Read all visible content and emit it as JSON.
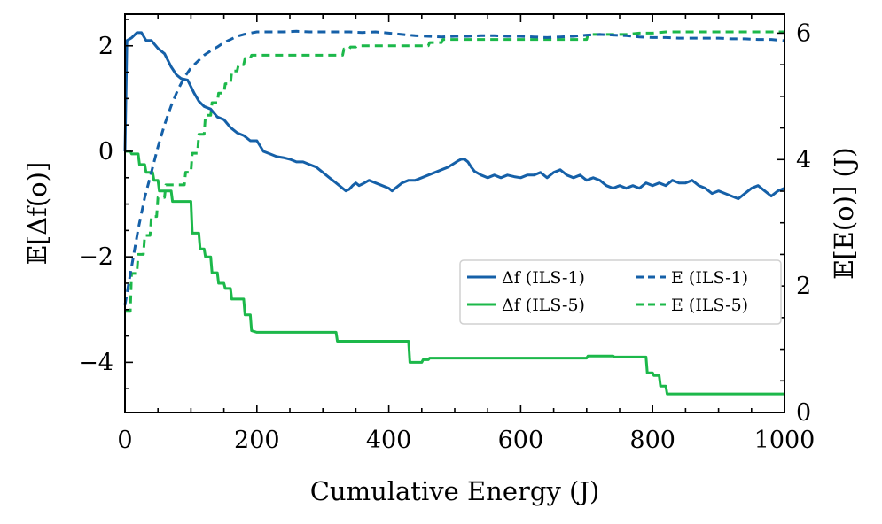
{
  "chart_data": {
    "type": "line",
    "xlabel": "Cumulative Energy (J)",
    "ylabel_left": "𝔼[Δf(o)]",
    "ylabel_right": "𝔼[E(o)] (J)",
    "xlim": [
      0,
      1000
    ],
    "ylim_left": [
      -4.95,
      2.6
    ],
    "ylim_right": [
      0,
      6.3
    ],
    "xticks": [
      0,
      200,
      400,
      600,
      800,
      1000
    ],
    "xtick_labels": [
      "0",
      "200",
      "400",
      "600",
      "800",
      "1000"
    ],
    "yticks_left": [
      2,
      0,
      -2,
      -4
    ],
    "ytick_labels_left": [
      "2",
      "0",
      "−2",
      "−4"
    ],
    "yticks_right": [
      0,
      2,
      4,
      6
    ],
    "ytick_labels_right": [
      "0",
      "2",
      "4",
      "6"
    ],
    "grid": false,
    "legend_position": "center-right",
    "colors": {
      "ils1": "#1560a8",
      "ils5": "#1cb84a"
    },
    "series": [
      {
        "name": "Δf(ILS-1)",
        "legend_label": "Δf (ILS-1)",
        "axis": "left",
        "style": "solid",
        "color": "#1560a8",
        "x": [
          0,
          3,
          10,
          18,
          25,
          32,
          40,
          50,
          60,
          70,
          78,
          85,
          95,
          105,
          112,
          120,
          130,
          140,
          150,
          160,
          170,
          180,
          190,
          200,
          210,
          220,
          230,
          240,
          250,
          260,
          270,
          280,
          290,
          300,
          310,
          320,
          330,
          335,
          340,
          345,
          350,
          355,
          360,
          370,
          380,
          390,
          400,
          405,
          410,
          420,
          430,
          440,
          450,
          460,
          470,
          480,
          490,
          500,
          505,
          510,
          515,
          520,
          525,
          530,
          540,
          550,
          560,
          570,
          580,
          590,
          600,
          610,
          620,
          630,
          640,
          650,
          660,
          670,
          680,
          690,
          700,
          710,
          720,
          730,
          740,
          750,
          760,
          770,
          780,
          790,
          800,
          810,
          820,
          830,
          840,
          850,
          860,
          870,
          880,
          890,
          900,
          910,
          920,
          930,
          940,
          950,
          960,
          970,
          980,
          990,
          1000
        ],
        "values": [
          0.0,
          2.1,
          2.15,
          2.25,
          2.25,
          2.1,
          2.1,
          1.95,
          1.85,
          1.6,
          1.45,
          1.38,
          1.35,
          1.1,
          0.95,
          0.85,
          0.8,
          0.65,
          0.6,
          0.45,
          0.35,
          0.3,
          0.2,
          0.2,
          0.0,
          -0.05,
          -0.1,
          -0.12,
          -0.15,
          -0.2,
          -0.2,
          -0.25,
          -0.3,
          -0.4,
          -0.5,
          -0.6,
          -0.7,
          -0.75,
          -0.72,
          -0.65,
          -0.6,
          -0.65,
          -0.62,
          -0.55,
          -0.6,
          -0.65,
          -0.7,
          -0.75,
          -0.7,
          -0.6,
          -0.55,
          -0.55,
          -0.5,
          -0.45,
          -0.4,
          -0.35,
          -0.3,
          -0.22,
          -0.18,
          -0.15,
          -0.15,
          -0.2,
          -0.3,
          -0.38,
          -0.45,
          -0.5,
          -0.45,
          -0.5,
          -0.45,
          -0.48,
          -0.5,
          -0.45,
          -0.45,
          -0.4,
          -0.5,
          -0.4,
          -0.35,
          -0.45,
          -0.5,
          -0.45,
          -0.55,
          -0.5,
          -0.55,
          -0.65,
          -0.7,
          -0.65,
          -0.7,
          -0.65,
          -0.7,
          -0.6,
          -0.65,
          -0.6,
          -0.65,
          -0.55,
          -0.6,
          -0.6,
          -0.55,
          -0.65,
          -0.7,
          -0.8,
          -0.75,
          -0.8,
          -0.85,
          -0.9,
          -0.8,
          -0.7,
          -0.65,
          -0.75,
          -0.85,
          -0.75,
          -0.7
        ]
      },
      {
        "name": "E(ILS-1)",
        "legend_label": "E (ILS-1)",
        "axis": "right",
        "style": "dashed",
        "color": "#1560a8",
        "x": [
          0,
          10,
          20,
          30,
          40,
          50,
          60,
          70,
          80,
          90,
          100,
          110,
          120,
          130,
          140,
          150,
          160,
          170,
          180,
          190,
          200,
          220,
          240,
          260,
          280,
          300,
          320,
          340,
          360,
          380,
          400,
          420,
          440,
          460,
          480,
          500,
          520,
          540,
          560,
          580,
          600,
          620,
          640,
          660,
          680,
          700,
          720,
          740,
          760,
          780,
          800,
          820,
          840,
          860,
          880,
          900,
          920,
          940,
          960,
          980,
          1000
        ],
        "values": [
          1.7,
          2.3,
          2.9,
          3.4,
          3.8,
          4.2,
          4.55,
          4.85,
          5.1,
          5.3,
          5.45,
          5.55,
          5.65,
          5.72,
          5.78,
          5.85,
          5.9,
          5.95,
          5.98,
          6.0,
          6.02,
          6.02,
          6.02,
          6.03,
          6.02,
          6.02,
          6.02,
          6.02,
          6.01,
          6.02,
          6.0,
          5.98,
          5.96,
          5.95,
          5.94,
          5.95,
          5.95,
          5.96,
          5.96,
          5.95,
          5.95,
          5.94,
          5.93,
          5.94,
          5.95,
          5.97,
          5.98,
          5.97,
          5.96,
          5.94,
          5.93,
          5.93,
          5.92,
          5.92,
          5.92,
          5.92,
          5.91,
          5.91,
          5.9,
          5.9,
          5.88
        ]
      },
      {
        "name": "Δf(ILS-5)",
        "legend_label": "Δf (ILS-5)",
        "axis": "left",
        "style": "solid",
        "color": "#1cb84a",
        "x": [
          0,
          8,
          10,
          20,
          22,
          30,
          32,
          42,
          44,
          50,
          52,
          70,
          72,
          82,
          84,
          92,
          94,
          100,
          102,
          112,
          114,
          120,
          122,
          130,
          132,
          140,
          142,
          150,
          152,
          160,
          162,
          170,
          172,
          180,
          182,
          190,
          192,
          200,
          250,
          300,
          320,
          322,
          330,
          332,
          380,
          425,
          427,
          430,
          432,
          450,
          452,
          460,
          462,
          500,
          550,
          600,
          650,
          700,
          702,
          710,
          712,
          740,
          742,
          760,
          762,
          790,
          792,
          800,
          802,
          810,
          812,
          820,
          822,
          1000
        ],
        "values": [
          0.0,
          0.0,
          -0.05,
          -0.05,
          -0.25,
          -0.25,
          -0.4,
          -0.4,
          -0.55,
          -0.55,
          -0.75,
          -0.75,
          -0.95,
          -0.95,
          -0.95,
          -0.95,
          -0.95,
          -0.95,
          -1.55,
          -1.55,
          -1.85,
          -1.85,
          -2.0,
          -2.0,
          -2.3,
          -2.3,
          -2.5,
          -2.5,
          -2.6,
          -2.6,
          -2.8,
          -2.8,
          -2.8,
          -2.8,
          -3.1,
          -3.1,
          -3.4,
          -3.43,
          -3.43,
          -3.43,
          -3.43,
          -3.6,
          -3.6,
          -3.6,
          -3.6,
          -3.6,
          -3.6,
          -3.6,
          -4.0,
          -4.0,
          -3.95,
          -3.95,
          -3.92,
          -3.92,
          -3.92,
          -3.92,
          -3.92,
          -3.92,
          -3.88,
          -3.88,
          -3.88,
          -3.88,
          -3.9,
          -3.9,
          -3.9,
          -3.9,
          -4.2,
          -4.2,
          -4.25,
          -4.25,
          -4.45,
          -4.45,
          -4.6,
          -4.6
        ]
      },
      {
        "name": "E(ILS-5)",
        "legend_label": "E (ILS-5)",
        "axis": "right",
        "style": "dashed",
        "color": "#1cb84a",
        "x": [
          0,
          8,
          10,
          18,
          20,
          28,
          30,
          38,
          40,
          48,
          50,
          60,
          62,
          90,
          92,
          100,
          102,
          110,
          112,
          120,
          122,
          130,
          132,
          140,
          142,
          150,
          152,
          160,
          162,
          170,
          172,
          180,
          182,
          190,
          192,
          200,
          250,
          300,
          330,
          332,
          340,
          342,
          350,
          352,
          460,
          462,
          470,
          480,
          482,
          600,
          650,
          700,
          702,
          760,
          780,
          800,
          820,
          850,
          900,
          950,
          1000
        ],
        "values": [
          1.6,
          1.6,
          2.2,
          2.2,
          2.5,
          2.5,
          2.8,
          2.8,
          3.1,
          3.1,
          3.4,
          3.4,
          3.6,
          3.6,
          3.8,
          3.8,
          4.1,
          4.1,
          4.4,
          4.4,
          4.7,
          4.7,
          4.9,
          4.9,
          5.05,
          5.05,
          5.2,
          5.2,
          5.4,
          5.4,
          5.5,
          5.5,
          5.6,
          5.6,
          5.65,
          5.65,
          5.65,
          5.65,
          5.65,
          5.75,
          5.75,
          5.78,
          5.78,
          5.8,
          5.8,
          5.85,
          5.85,
          5.85,
          5.9,
          5.9,
          5.9,
          5.9,
          5.98,
          5.98,
          6.0,
          6.0,
          6.02,
          6.02,
          6.02,
          6.02,
          6.02
        ]
      }
    ]
  }
}
